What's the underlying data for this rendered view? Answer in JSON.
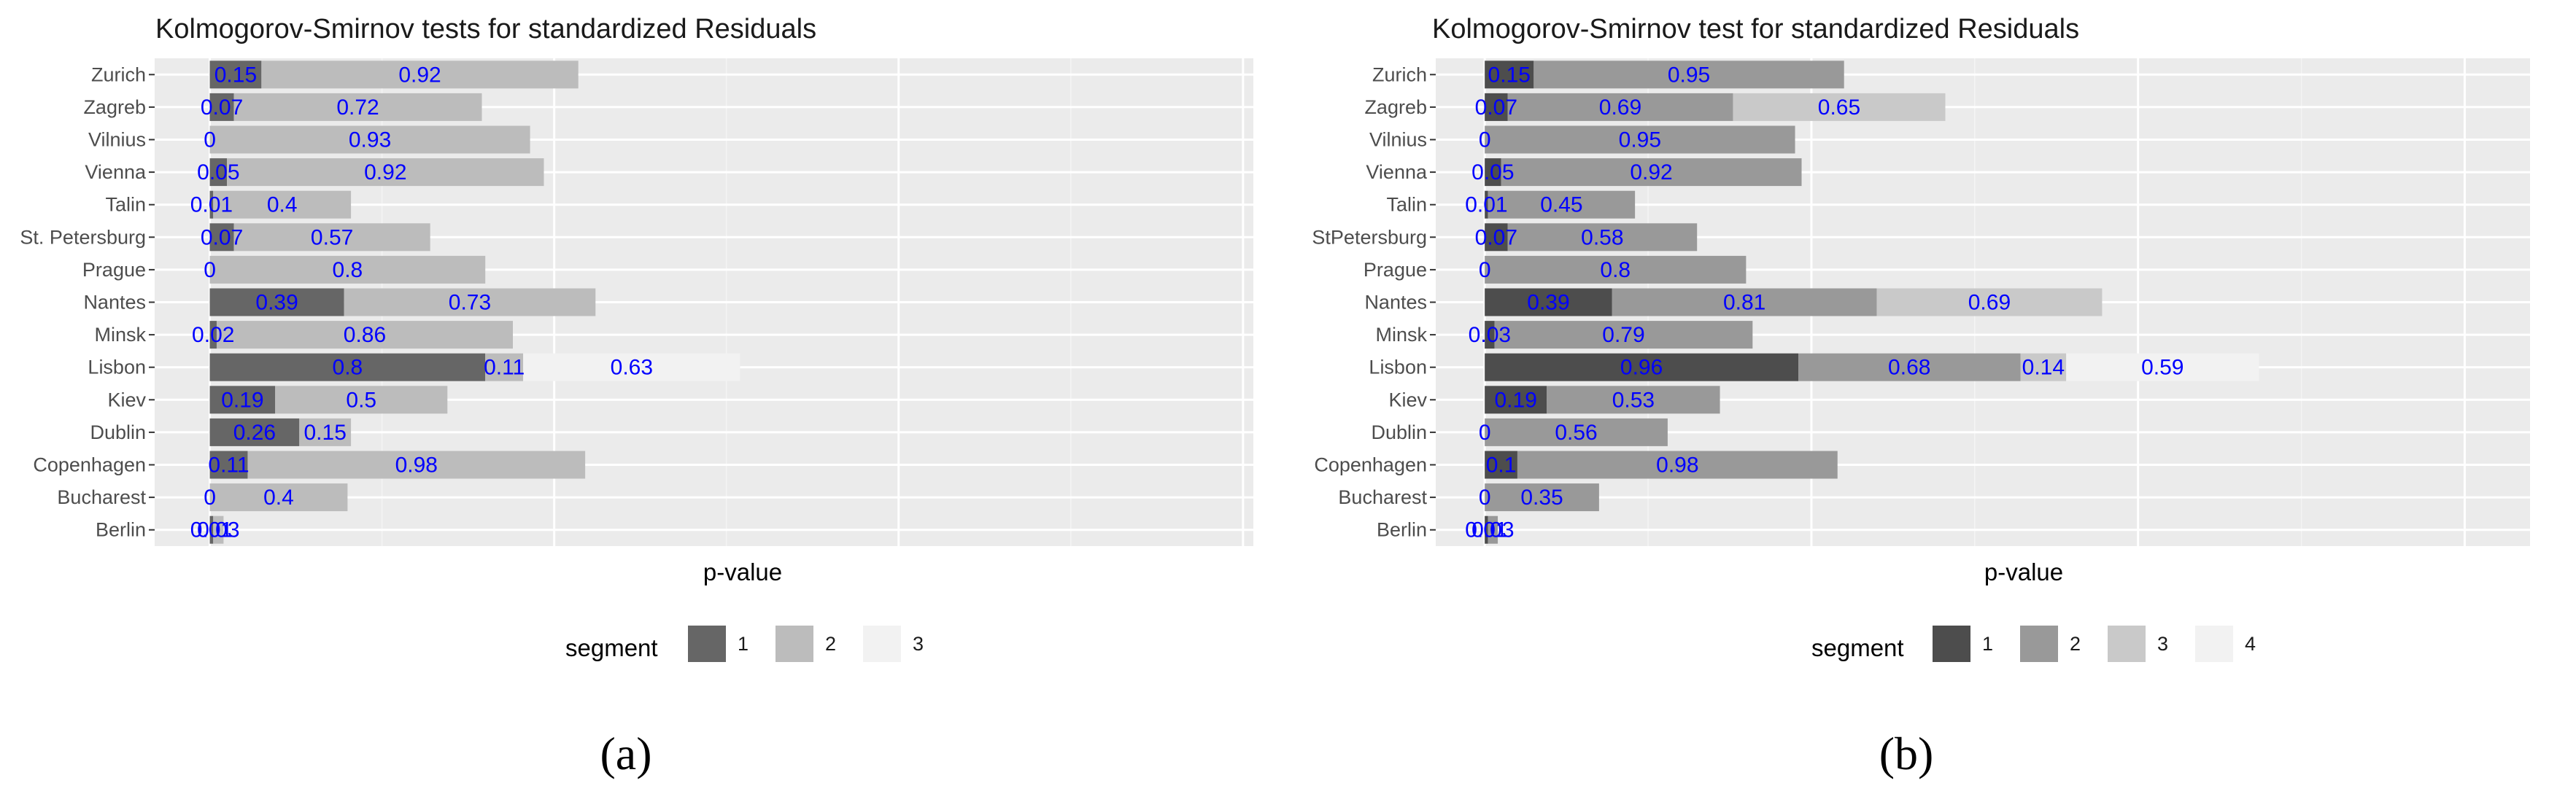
{
  "colors": {
    "panel": "#ebebeb",
    "grid_major": "#ffffff",
    "grid_minor": "#f4f4f4",
    "label": "#0000ff",
    "tick": "#333333"
  },
  "chart_data": [
    {
      "type": "bar",
      "orientation": "horizontal",
      "stacked": true,
      "panel_label": "(a)",
      "title": "Kolmogorov-Smirnov tests for standardized Residuals",
      "xlabel": "p-value",
      "ylabel": "",
      "xlim": [
        -0.16,
        3.03
      ],
      "legend_title": "segment",
      "legend_position": "bottom",
      "categories": [
        "Zurich",
        "Zagreb",
        "Vilnius",
        "Vienna",
        "Talin",
        "St. Petersburg",
        "Prague",
        "Nantes",
        "Minsk",
        "Lisbon",
        "Kiev",
        "Dublin",
        "Copenhagen",
        "Bucharest",
        "Berlin"
      ],
      "series": [
        {
          "name": "1",
          "color": "#666666",
          "values": [
            0.15,
            0.07,
            0,
            0.05,
            0.01,
            0.07,
            0,
            0.39,
            0.02,
            0.8,
            0.19,
            0.26,
            0.11,
            0,
            0.01
          ]
        },
        {
          "name": "2",
          "color": "#bcbcbc",
          "values": [
            0.92,
            0.72,
            0.93,
            0.92,
            0.4,
            0.57,
            0.8,
            0.73,
            0.86,
            0.11,
            0.5,
            0.15,
            0.98,
            0.4,
            0.03
          ]
        },
        {
          "name": "3",
          "color": "#f2f2f2",
          "values": [
            null,
            null,
            null,
            null,
            null,
            null,
            null,
            null,
            null,
            0.63,
            null,
            null,
            null,
            null,
            null
          ]
        }
      ]
    },
    {
      "type": "bar",
      "orientation": "horizontal",
      "stacked": true,
      "panel_label": "(b)",
      "title": "Kolmogorov-Smirnov test for standardized Residuals",
      "xlabel": "p-value",
      "ylabel": "",
      "xlim": [
        -0.15,
        3.2
      ],
      "legend_title": "segment",
      "legend_position": "bottom",
      "categories": [
        "Zurich",
        "Zagreb",
        "Vilnius",
        "Vienna",
        "Talin",
        "StPetersburg",
        "Prague",
        "Nantes",
        "Minsk",
        "Lisbon",
        "Kiev",
        "Dublin",
        "Copenhagen",
        "Bucharest",
        "Berlin"
      ],
      "series": [
        {
          "name": "1",
          "color": "#4d4d4d",
          "values": [
            0.15,
            0.07,
            0,
            0.05,
            0.01,
            0.07,
            0,
            0.39,
            0.03,
            0.96,
            0.19,
            0,
            0.1,
            0,
            0.01
          ]
        },
        {
          "name": "2",
          "color": "#999999",
          "values": [
            0.95,
            0.69,
            0.95,
            0.92,
            0.45,
            0.58,
            0.8,
            0.81,
            0.79,
            0.68,
            0.53,
            0.56,
            0.98,
            0.35,
            0.03
          ]
        },
        {
          "name": "3",
          "color": "#c9c9c9",
          "values": [
            null,
            0.65,
            null,
            null,
            null,
            null,
            null,
            0.69,
            null,
            0.14,
            null,
            null,
            null,
            null,
            null
          ]
        },
        {
          "name": "4",
          "color": "#f2f2f2",
          "values": [
            null,
            null,
            null,
            null,
            null,
            null,
            null,
            null,
            null,
            0.59,
            null,
            null,
            null,
            null,
            null
          ]
        }
      ]
    }
  ]
}
